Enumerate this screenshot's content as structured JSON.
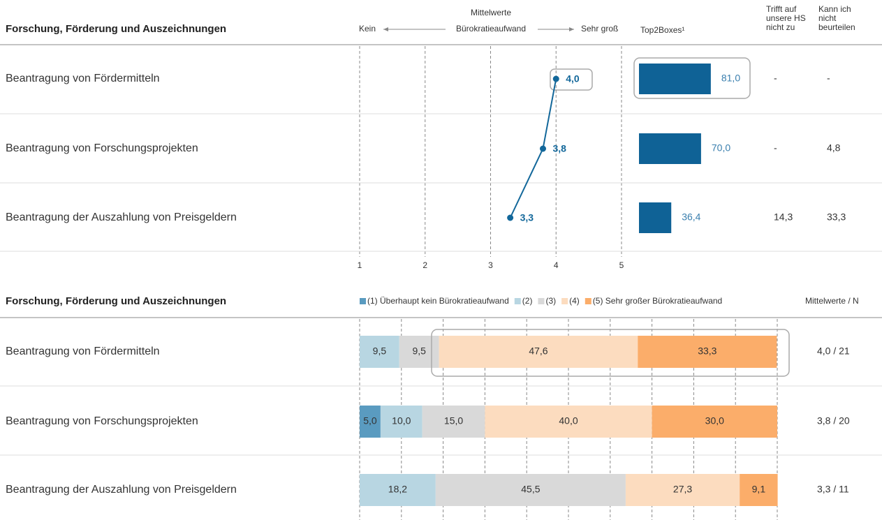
{
  "chart_data": [
    {
      "type": "line",
      "title": "Forschung, Förderung und Auszeichnungen",
      "axis_top": "Mittelwerte",
      "axis_label": "Bürokratieaufwand",
      "axis_left": "Kein",
      "axis_right": "Sehr groß",
      "categories": [
        "Beantragung von Fördermitteln",
        "Beantragung von Forschungsprojekten",
        "Beantragung der Auszahlung von Preisgeldern"
      ],
      "values": [
        4.0,
        3.8,
        3.3
      ],
      "value_labels": [
        "4,0",
        "3,8",
        "3,3"
      ],
      "xlim": [
        1,
        5
      ],
      "xticks": [
        1,
        2,
        3,
        4,
        5
      ],
      "grid": true,
      "color": "#12679a",
      "top2_title": "Top2Boxes¹",
      "top2_values": [
        81.0,
        70.0,
        36.4
      ],
      "top2_labels": [
        "81,0",
        "70,0",
        "36,4"
      ],
      "top2_lim": [
        0,
        100
      ],
      "top2_color": "#0f6296",
      "col3_title": [
        "Trifft auf",
        "unsere HS",
        "nicht zu"
      ],
      "col3": [
        "-",
        "-",
        "14,3"
      ],
      "col4_title": [
        "Kann ich",
        "nicht",
        "beurteilen"
      ],
      "col4": [
        "-",
        "4,8",
        "33,3"
      ]
    },
    {
      "type": "stacked_bar",
      "title": "Forschung, Förderung und Auszeichnungen",
      "categories": [
        "Beantragung von Fördermitteln",
        "Beantragung von Forschungsprojekten",
        "Beantragung der Auszahlung von Preisgeldern"
      ],
      "series": [
        {
          "name": "(1) Überhaupt kein Bürokratieaufwand",
          "color": "#5a9bc0",
          "values": [
            null,
            5.0,
            null
          ],
          "value_labels": [
            null,
            "5,0",
            null
          ]
        },
        {
          "name": "(2)",
          "color": "#b8d6e2",
          "values": [
            9.5,
            10.0,
            18.2
          ],
          "value_labels": [
            "9,5",
            "10,0",
            "18,2"
          ]
        },
        {
          "name": "(3)",
          "color": "#d9d9d9",
          "values": [
            9.5,
            15.0,
            45.5
          ],
          "value_labels": [
            "9,5",
            "15,0",
            "45,5"
          ]
        },
        {
          "name": "(4)",
          "color": "#fcdcbf",
          "values": [
            47.6,
            40.0,
            27.3
          ],
          "value_labels": [
            "47,6",
            "40,0",
            "27,3"
          ]
        },
        {
          "name": "(5) Sehr großer Bürokratieaufwand",
          "color": "#fbad6a",
          "values": [
            33.3,
            30.0,
            9.1
          ],
          "value_labels": [
            "33,3",
            "30,0",
            "9,1"
          ]
        }
      ],
      "xlim": [
        0,
        100
      ],
      "gridlines": [
        0,
        10,
        20,
        30,
        40,
        50,
        60,
        70,
        80,
        90,
        100
      ],
      "right_title": "Mittelwerte / N",
      "right_labels": [
        "4,0 / 21",
        "3,8 / 20",
        "3,3 / 11"
      ]
    }
  ]
}
